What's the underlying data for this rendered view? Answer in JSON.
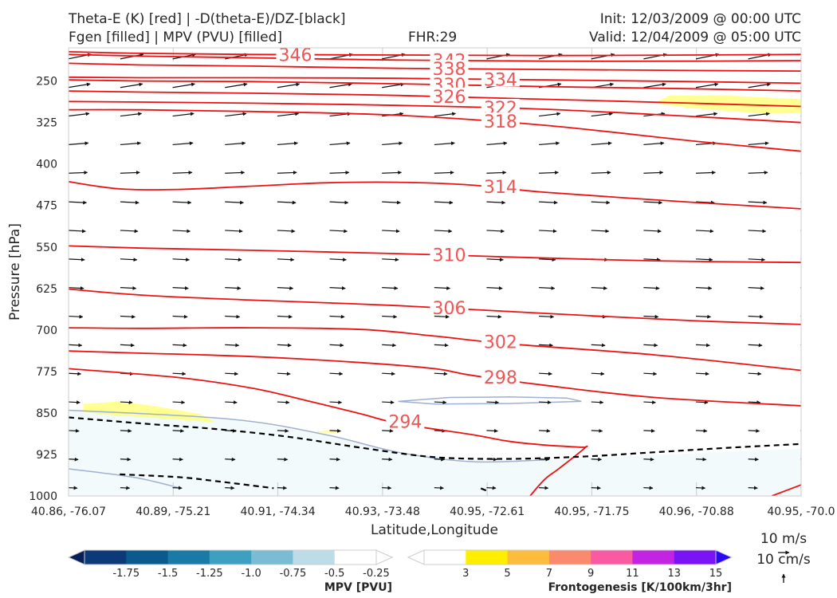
{
  "header": {
    "title_left_line1": "Theta-E (K) [red] | -D(theta-E)/DZ-[black]",
    "title_left_line2": "Fgen [filled] | MPV (PVU) [filled]",
    "fhr": "FHR:29",
    "init": "Init: 12/03/2009 @ 00:00 UTC",
    "valid": "Valid: 12/04/2009 @ 05:00 UTC"
  },
  "chart_data": {
    "type": "cross-section",
    "xlabel": "Latitude,Longitude",
    "ylabel": "Pressure [hPa]",
    "x_ticks": [
      "40.86, -76.07",
      "40.89, -75.21",
      "40.91, -74.34",
      "40.93, -73.48",
      "40.95, -72.61",
      "40.95, -71.75",
      "40.96, -70.88",
      "40.95, -70.0"
    ],
    "y_ticks": [
      250,
      325,
      400,
      475,
      550,
      625,
      700,
      775,
      850,
      925,
      1000
    ],
    "ylim": [
      1000,
      190
    ],
    "y_scale": "linear",
    "theta_e_contours": [
      {
        "level": 346,
        "label": "346",
        "points": [
          [
            0,
            197
          ],
          [
            0.1,
            200
          ],
          [
            0.25,
            202
          ],
          [
            0.45,
            203
          ],
          [
            0.65,
            204
          ],
          [
            0.85,
            203
          ],
          [
            1,
            202
          ]
        ]
      },
      {
        "level": 342,
        "label": "342",
        "points": [
          [
            0,
            202
          ],
          [
            0.1,
            205
          ],
          [
            0.25,
            208
          ],
          [
            0.45,
            212
          ],
          [
            0.65,
            214
          ],
          [
            0.85,
            214
          ],
          [
            1,
            213
          ]
        ]
      },
      {
        "level": 338,
        "label": "338",
        "points": [
          [
            0,
            218
          ],
          [
            0.1,
            221
          ],
          [
            0.25,
            223
          ],
          [
            0.45,
            227
          ],
          [
            0.65,
            229
          ],
          [
            0.85,
            231
          ],
          [
            1,
            232
          ]
        ]
      },
      {
        "level": 334,
        "label": "334",
        "points": [
          [
            0,
            243
          ],
          [
            0.1,
            244
          ],
          [
            0.25,
            244
          ],
          [
            0.45,
            245
          ],
          [
            0.65,
            248
          ],
          [
            0.85,
            251
          ],
          [
            1,
            254
          ]
        ]
      },
      {
        "level": 330,
        "label": "330",
        "points": [
          [
            0,
            248
          ],
          [
            0.1,
            250
          ],
          [
            0.25,
            251
          ],
          [
            0.45,
            255
          ],
          [
            0.65,
            260
          ],
          [
            0.85,
            264
          ],
          [
            1,
            268
          ]
        ]
      },
      {
        "level": 326,
        "label": "326",
        "points": [
          [
            0,
            268
          ],
          [
            0.1,
            270
          ],
          [
            0.25,
            272
          ],
          [
            0.45,
            276
          ],
          [
            0.65,
            283
          ],
          [
            0.85,
            290
          ],
          [
            1,
            296
          ]
        ]
      },
      {
        "level": 322,
        "label": "322",
        "points": [
          [
            0,
            287
          ],
          [
            0.1,
            288
          ],
          [
            0.25,
            290
          ],
          [
            0.45,
            294
          ],
          [
            0.65,
            301
          ],
          [
            0.85,
            314
          ],
          [
            1,
            325
          ]
        ]
      },
      {
        "level": 318,
        "label": "318",
        "points": [
          [
            0,
            302
          ],
          [
            0.1,
            302
          ],
          [
            0.25,
            305
          ],
          [
            0.45,
            312
          ],
          [
            0.65,
            330
          ],
          [
            0.85,
            358
          ],
          [
            1,
            377
          ]
        ]
      },
      {
        "level": 314,
        "label": "314",
        "points": [
          [
            0,
            432
          ],
          [
            0.07,
            445
          ],
          [
            0.15,
            446
          ],
          [
            0.25,
            440
          ],
          [
            0.35,
            434
          ],
          [
            0.45,
            433
          ],
          [
            0.55,
            438
          ],
          [
            0.65,
            451
          ],
          [
            0.85,
            469
          ],
          [
            1,
            481
          ]
        ]
      },
      {
        "level": 310,
        "label": "310",
        "points": [
          [
            0,
            548
          ],
          [
            0.1,
            552
          ],
          [
            0.25,
            556
          ],
          [
            0.45,
            562
          ],
          [
            0.6,
            568
          ],
          [
            0.8,
            575
          ],
          [
            1,
            578
          ]
        ]
      },
      {
        "level": 306,
        "label": "306",
        "points": [
          [
            0,
            626
          ],
          [
            0.1,
            637
          ],
          [
            0.25,
            646
          ],
          [
            0.45,
            656
          ],
          [
            0.65,
            670
          ],
          [
            0.85,
            683
          ],
          [
            1,
            690
          ]
        ]
      },
      {
        "level": 302,
        "label": "302",
        "points": [
          [
            0,
            696
          ],
          [
            0.1,
            697
          ],
          [
            0.25,
            696
          ],
          [
            0.4,
            699
          ],
          [
            0.5,
            711
          ],
          [
            0.6,
            725
          ],
          [
            0.8,
            745
          ],
          [
            1,
            773
          ]
        ]
      },
      {
        "level": 298,
        "label": "298",
        "points": [
          [
            0,
            738
          ],
          [
            0.1,
            742
          ],
          [
            0.25,
            748
          ],
          [
            0.4,
            759
          ],
          [
            0.5,
            770
          ],
          [
            0.55,
            782
          ],
          [
            0.65,
            800
          ],
          [
            0.8,
            822
          ],
          [
            1,
            837
          ]
        ]
      },
      {
        "level": 294,
        "label": "294",
        "points": [
          [
            0,
            770
          ],
          [
            0.15,
            786
          ],
          [
            0.25,
            805
          ],
          [
            0.32,
            826
          ],
          [
            0.4,
            852
          ],
          [
            0.45,
            869
          ],
          [
            0.55,
            889
          ],
          [
            0.6,
            901
          ],
          [
            0.65,
            908
          ],
          [
            0.7,
            912
          ],
          [
            0.705,
            913
          ],
          [
            0.67,
            950
          ],
          [
            0.65,
            970
          ],
          [
            0.63,
            1000
          ]
        ]
      },
      {
        "level": 294,
        "label": "",
        "points": [
          [
            0.96,
            1000
          ],
          [
            1,
            980
          ]
        ]
      }
    ],
    "stability_contours": [
      {
        "style": "dashed",
        "points": [
          [
            0,
            858
          ],
          [
            0.1,
            869
          ],
          [
            0.2,
            879
          ],
          [
            0.3,
            893
          ],
          [
            0.4,
            913
          ],
          [
            0.5,
            930
          ],
          [
            0.6,
            933
          ],
          [
            0.7,
            929
          ],
          [
            0.8,
            921
          ],
          [
            0.9,
            913
          ],
          [
            1,
            906
          ]
        ]
      },
      {
        "style": "dashed",
        "points": [
          [
            0.07,
            961
          ],
          [
            0.15,
            966
          ],
          [
            0.2,
            973
          ],
          [
            0.28,
            986
          ]
        ]
      },
      {
        "style": "dashed",
        "points": [
          [
            0.57,
            990
          ],
          [
            0.56,
            985
          ]
        ]
      }
    ],
    "mpv_shading": [
      {
        "level": -0.25,
        "color": "#f2fafc",
        "points": [
          [
            0,
            845
          ],
          [
            0.22,
            861
          ],
          [
            0.35,
            889
          ],
          [
            0.45,
            921
          ],
          [
            0.55,
            938
          ],
          [
            0.65,
            935
          ],
          [
            0.8,
            926
          ],
          [
            1,
            915
          ],
          [
            1,
            1000
          ],
          [
            0,
            1000
          ]
        ]
      }
    ],
    "mpv_lines": [
      {
        "points": [
          [
            0,
            845
          ],
          [
            0.22,
            861
          ],
          [
            0.35,
            889
          ],
          [
            0.45,
            921
          ],
          [
            0.55,
            938
          ],
          [
            0.65,
            935
          ]
        ]
      },
      {
        "points": [
          [
            0,
            951
          ],
          [
            0.05,
            959
          ],
          [
            0.1,
            969
          ],
          [
            0.15,
            985
          ]
        ]
      },
      {
        "closed": true,
        "points": [
          [
            0.45,
            829
          ],
          [
            0.52,
            822
          ],
          [
            0.6,
            821
          ],
          [
            0.68,
            823
          ],
          [
            0.7,
            829
          ],
          [
            0.6,
            833
          ],
          [
            0.5,
            834
          ]
        ]
      }
    ],
    "fgen_shading": [
      {
        "level": 3,
        "color": "#ffff66",
        "points": [
          [
            0.82,
            276
          ],
          [
            0.9,
            276
          ],
          [
            1,
            283
          ],
          [
            1,
            308
          ],
          [
            0.95,
            309
          ],
          [
            0.85,
            299
          ],
          [
            0.8,
            290
          ]
        ]
      },
      {
        "level": 3,
        "color": "#ffff66",
        "points": [
          [
            0.02,
            834
          ],
          [
            0.07,
            829
          ],
          [
            0.12,
            838
          ],
          [
            0.18,
            852
          ],
          [
            0.2,
            867
          ],
          [
            0.13,
            860
          ],
          [
            0.05,
            853
          ],
          [
            0.02,
            848
          ]
        ]
      },
      {
        "level": 3,
        "color": "#ffff66",
        "points": [
          [
            0.33,
            885
          ],
          [
            0.36,
            881
          ],
          [
            0.37,
            886
          ]
        ]
      }
    ],
    "wind_vectors": {
      "rows": 16,
      "cols": 15,
      "upper_u_ms": 20,
      "lower_u_ms": 8
    },
    "mpv_colorbar": {
      "label": "MPV [PVU]",
      "levels": [
        "-1.75",
        "-1.5",
        "-1.25",
        "-1.0",
        "-0.75",
        "-0.5",
        "-0.25"
      ],
      "colors": [
        "#0a1e5a",
        "#0c3a78",
        "#0a5a8e",
        "#1a7aa6",
        "#3ea0c0",
        "#79bcd4",
        "#bcdde6",
        "#ffffff",
        "#ffffff"
      ]
    },
    "fgen_colorbar": {
      "label": "Frontogenesis [K/100km/3hr]",
      "levels": [
        "3",
        "5",
        "7",
        "9",
        "11",
        "13",
        "15"
      ],
      "colors": [
        "#ffffff",
        "#ffffff",
        "#ffee00",
        "#fcbd3c",
        "#fa8a6e",
        "#fa5aa2",
        "#c224e2",
        "#7a14f4",
        "#2a08fa"
      ]
    },
    "vector_keys": [
      "10 m/s",
      "10 cm/s"
    ]
  }
}
